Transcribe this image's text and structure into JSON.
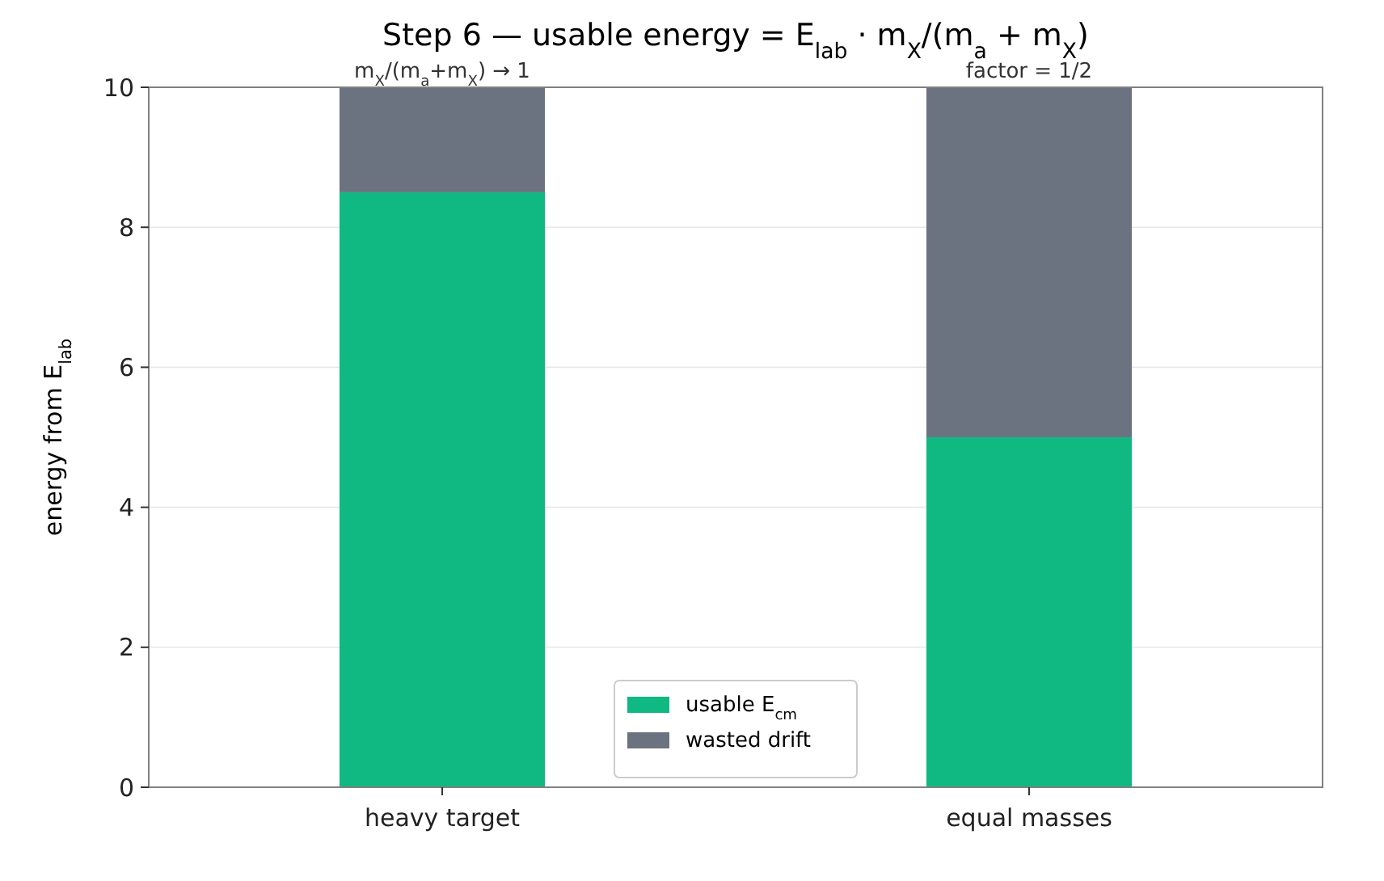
{
  "chart_data": {
    "type": "bar",
    "title": "Step 6 — usable energy = E$_{lab}$ · m$_{X}$/(m$_{a}$ + m$_{X}$)",
    "ylabel": "energy from E$_{lab}$",
    "categories": [
      "heavy target",
      "equal masses"
    ],
    "series": [
      {
        "name": "usable E$_{cm}$",
        "color": "#10b981",
        "values": [
          8.5,
          5
        ]
      },
      {
        "name": "wasted drift",
        "color": "#6b7280",
        "values": [
          1.5,
          5
        ]
      }
    ],
    "stacked": true,
    "ylim": [
      0,
      10
    ],
    "yticks": [
      0,
      2,
      4,
      6,
      8,
      10
    ],
    "grid": "y",
    "legend": "bottom",
    "annotations": [
      {
        "text": "m$_{X}$/(m$_{a}$+m$_{X}$) → 1",
        "x": "heavy target",
        "y": 10
      },
      {
        "text": "factor = 1/2",
        "x": "equal masses",
        "y": 10
      }
    ]
  }
}
